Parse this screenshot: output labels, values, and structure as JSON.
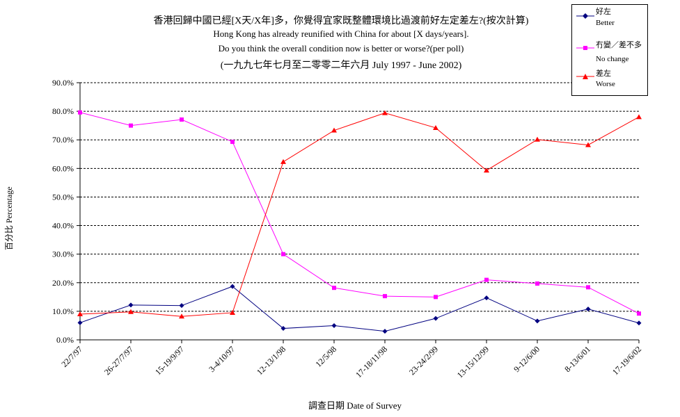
{
  "chart_data": {
    "type": "line",
    "title_zh": "香港回歸中國已經[X天/X年]多，你覺得宜家既整體環境比過渡前好左定差左?(按次計算)",
    "title_en_1": "Hong Kong has already reunified with China for about [X days/years].",
    "title_en_2": "Do you think the overall condition now is better or worse?(per poll)",
    "subtitle": "(一九九七年七月至二零零二年六月 July 1997 - June 2002)",
    "xlabel": "調查日期 Date of Survey",
    "ylabel": "百分比 Percentage",
    "ylim": [
      0,
      90
    ],
    "yticks": [
      "0.0%",
      "10.0%",
      "20.0%",
      "30.0%",
      "40.0%",
      "50.0%",
      "60.0%",
      "70.0%",
      "80.0%",
      "90.0%"
    ],
    "categories": [
      "22/7/97",
      "26-27/7/97",
      "15-19/9/97",
      "3-4/10/97",
      "12-13/1/98",
      "12/5/98",
      "17-18/11/98",
      "23-24/2/99",
      "13-15/12/99",
      "9-12/6/00",
      "8-13/6/01",
      "17-19/6/02"
    ],
    "grid": true,
    "legend_position": "top-right",
    "series": [
      {
        "name_zh": "好左",
        "name_en": "Better",
        "color": "#000080",
        "marker": "diamond",
        "values": [
          6.0,
          12.2,
          12.0,
          18.7,
          4.0,
          5.0,
          3.0,
          7.5,
          14.7,
          6.6,
          10.8,
          5.9
        ]
      },
      {
        "name_zh": "冇變／差不多",
        "name_en": "No change",
        "color": "#ff00ff",
        "marker": "square",
        "values": [
          79.6,
          75.0,
          77.1,
          69.3,
          30.0,
          18.2,
          15.3,
          15.0,
          21.0,
          19.7,
          18.4,
          9.2
        ]
      },
      {
        "name_zh": "差左",
        "name_en": "Worse",
        "color": "#ff0000",
        "marker": "triangle",
        "values": [
          9.0,
          9.8,
          8.2,
          9.5,
          62.3,
          73.3,
          79.4,
          74.2,
          59.3,
          70.1,
          68.2,
          78.0
        ]
      }
    ]
  }
}
